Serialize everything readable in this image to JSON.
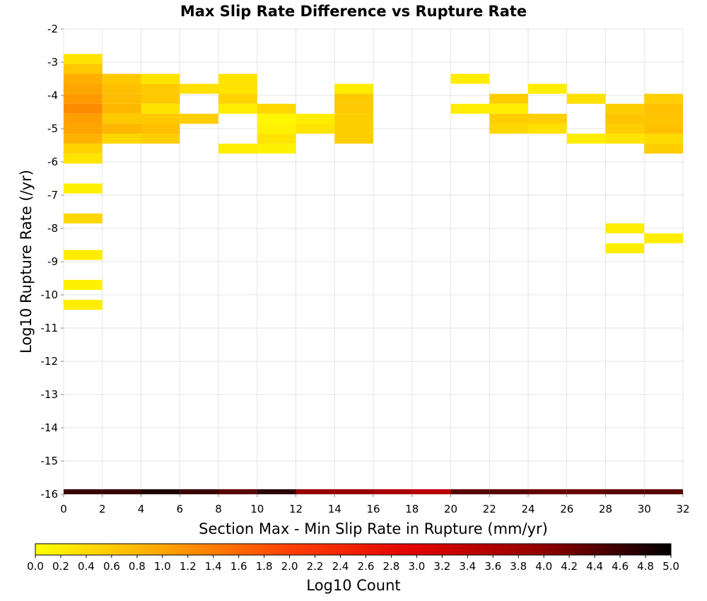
{
  "chart_data": {
    "type": "heatmap",
    "title": "Max Slip Rate Difference vs Rupture Rate",
    "xlabel": "Section Max - Min Slip Rate in Rupture (mm/yr)",
    "ylabel": "Log10 Rupture Rate (/yr)",
    "xlim": [
      0,
      32
    ],
    "ylim": [
      -16,
      -2
    ],
    "x_ticks": [
      "0",
      "2",
      "4",
      "6",
      "8",
      "10",
      "12",
      "14",
      "16",
      "18",
      "20",
      "22",
      "24",
      "26",
      "28",
      "30",
      "32"
    ],
    "y_ticks": [
      "-2",
      "-3",
      "-4",
      "-5",
      "-6",
      "-7",
      "-8",
      "-9",
      "-10",
      "-11",
      "-12",
      "-13",
      "-14",
      "-15",
      "-16"
    ],
    "grid": true,
    "x_bin_width": 2,
    "y_bin_height": 0.3,
    "colorbar": {
      "label": "Log10 Count",
      "range": [
        0,
        5
      ],
      "ticks": [
        "0.0",
        "0.2",
        "0.4",
        "0.6",
        "0.8",
        "1.0",
        "1.2",
        "1.4",
        "1.6",
        "1.8",
        "2.0",
        "2.2",
        "2.4",
        "2.6",
        "2.8",
        "3.0",
        "3.2",
        "3.4",
        "3.6",
        "3.8",
        "4.0",
        "4.2",
        "4.4",
        "4.6",
        "4.8",
        "5.0"
      ],
      "colors": [
        "#ffff00",
        "#ffa500",
        "#ff4000",
        "#e00000",
        "#900000",
        "#000000"
      ],
      "placement": "bottom"
    },
    "cells": [
      {
        "x": 0,
        "y": -2.9,
        "v": 0.3
      },
      {
        "x": 0,
        "y": -3.2,
        "v": 0.6
      },
      {
        "x": 0,
        "y": -3.5,
        "v": 0.9
      },
      {
        "x": 0,
        "y": -3.8,
        "v": 1.0
      },
      {
        "x": 0,
        "y": -4.1,
        "v": 1.1
      },
      {
        "x": 0,
        "y": -4.4,
        "v": 1.25
      },
      {
        "x": 0,
        "y": -4.7,
        "v": 1.05
      },
      {
        "x": 0,
        "y": -5.0,
        "v": 1.0
      },
      {
        "x": 0,
        "y": -5.3,
        "v": 0.85
      },
      {
        "x": 0,
        "y": -5.6,
        "v": 0.5
      },
      {
        "x": 0,
        "y": -5.9,
        "v": 0.3
      },
      {
        "x": 0,
        "y": -6.8,
        "v": 0.15
      },
      {
        "x": 0,
        "y": -7.7,
        "v": 0.45
      },
      {
        "x": 0,
        "y": -8.8,
        "v": 0.2
      },
      {
        "x": 0,
        "y": -9.7,
        "v": 0.15
      },
      {
        "x": 0,
        "y": -10.3,
        "v": 0.2
      },
      {
        "x": 2,
        "y": -3.5,
        "v": 0.6
      },
      {
        "x": 2,
        "y": -3.8,
        "v": 0.7
      },
      {
        "x": 2,
        "y": -4.1,
        "v": 0.75
      },
      {
        "x": 2,
        "y": -4.4,
        "v": 0.8
      },
      {
        "x": 2,
        "y": -4.7,
        "v": 0.6
      },
      {
        "x": 2,
        "y": -5.0,
        "v": 0.8
      },
      {
        "x": 2,
        "y": -5.3,
        "v": 0.45
      },
      {
        "x": 4,
        "y": -3.5,
        "v": 0.3
      },
      {
        "x": 4,
        "y": -3.8,
        "v": 0.6
      },
      {
        "x": 4,
        "y": -4.1,
        "v": 0.6
      },
      {
        "x": 4,
        "y": -4.4,
        "v": 0.3
      },
      {
        "x": 4,
        "y": -4.7,
        "v": 0.6
      },
      {
        "x": 4,
        "y": -5.0,
        "v": 0.7
      },
      {
        "x": 4,
        "y": -5.3,
        "v": 0.55
      },
      {
        "x": 6,
        "y": -3.8,
        "v": 0.35
      },
      {
        "x": 6,
        "y": -4.7,
        "v": 0.55
      },
      {
        "x": 8,
        "y": -3.5,
        "v": 0.3
      },
      {
        "x": 8,
        "y": -3.8,
        "v": 0.3
      },
      {
        "x": 8,
        "y": -4.1,
        "v": 0.5
      },
      {
        "x": 8,
        "y": -4.4,
        "v": 0.2
      },
      {
        "x": 8,
        "y": -5.6,
        "v": 0.2
      },
      {
        "x": 10,
        "y": -4.4,
        "v": 0.45
      },
      {
        "x": 10,
        "y": -4.7,
        "v": 0.1
      },
      {
        "x": 10,
        "y": -5.0,
        "v": 0.15
      },
      {
        "x": 10,
        "y": -5.3,
        "v": 0.3
      },
      {
        "x": 10,
        "y": -5.6,
        "v": 0.15
      },
      {
        "x": 12,
        "y": -4.7,
        "v": 0.2
      },
      {
        "x": 12,
        "y": -5.0,
        "v": 0.3
      },
      {
        "x": 14,
        "y": -3.8,
        "v": 0.2
      },
      {
        "x": 14,
        "y": -4.1,
        "v": 0.6
      },
      {
        "x": 14,
        "y": -4.4,
        "v": 0.6
      },
      {
        "x": 14,
        "y": -4.7,
        "v": 0.55
      },
      {
        "x": 14,
        "y": -5.0,
        "v": 0.55
      },
      {
        "x": 14,
        "y": -5.3,
        "v": 0.55
      },
      {
        "x": 20,
        "y": -3.5,
        "v": 0.2
      },
      {
        "x": 20,
        "y": -4.4,
        "v": 0.2
      },
      {
        "x": 22,
        "y": -4.1,
        "v": 0.55
      },
      {
        "x": 22,
        "y": -4.4,
        "v": 0.2
      },
      {
        "x": 22,
        "y": -4.7,
        "v": 0.55
      },
      {
        "x": 22,
        "y": -5.0,
        "v": 0.45
      },
      {
        "x": 24,
        "y": -3.8,
        "v": 0.2
      },
      {
        "x": 24,
        "y": -4.7,
        "v": 0.55
      },
      {
        "x": 24,
        "y": -5.0,
        "v": 0.35
      },
      {
        "x": 26,
        "y": -4.1,
        "v": 0.35
      },
      {
        "x": 26,
        "y": -5.3,
        "v": 0.2
      },
      {
        "x": 28,
        "y": -4.4,
        "v": 0.55
      },
      {
        "x": 28,
        "y": -4.7,
        "v": 0.65
      },
      {
        "x": 28,
        "y": -5.0,
        "v": 0.55
      },
      {
        "x": 28,
        "y": -5.3,
        "v": 0.3
      },
      {
        "x": 28,
        "y": -8.0,
        "v": 0.2
      },
      {
        "x": 28,
        "y": -8.6,
        "v": 0.2
      },
      {
        "x": 30,
        "y": -4.1,
        "v": 0.55
      },
      {
        "x": 30,
        "y": -4.4,
        "v": 0.7
      },
      {
        "x": 30,
        "y": -4.7,
        "v": 0.65
      },
      {
        "x": 30,
        "y": -5.0,
        "v": 0.7
      },
      {
        "x": 30,
        "y": -5.3,
        "v": 0.4
      },
      {
        "x": 30,
        "y": -5.6,
        "v": 0.55
      },
      {
        "x": 30,
        "y": -8.3,
        "v": 0.2
      }
    ],
    "bottom_row": {
      "y": -16.0,
      "values": [
        4.6,
        4.6,
        4.8,
        4.6,
        4.4,
        4.7,
        3.9,
        3.9,
        3.7,
        3.5,
        4.4,
        4.4,
        4.3,
        4.3,
        4.4,
        4.4
      ]
    }
  }
}
